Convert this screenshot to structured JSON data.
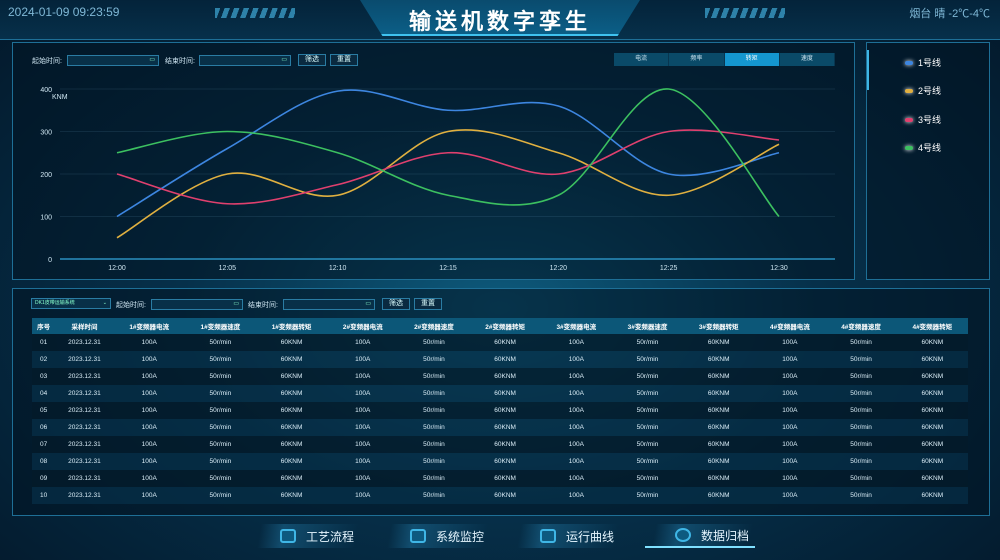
{
  "header": {
    "datetime": "2024-01-09 09:23:59",
    "title": "输送机数字孪生",
    "weather": "烟台 晴 -2℃-4℃"
  },
  "chart_filter": {
    "start_label": "起始时间:",
    "end_label": "结束时间:",
    "filter_button": "筛选",
    "reset_button": "重置"
  },
  "chart_tabs": [
    {
      "label": "电流",
      "active": false
    },
    {
      "label": "频率",
      "active": false
    },
    {
      "label": "转矩",
      "active": true
    },
    {
      "label": "速度",
      "active": false
    }
  ],
  "chart_data": {
    "type": "line",
    "xlabel": "",
    "ylabel": "KNM",
    "ylim": [
      0,
      400
    ],
    "yticks": [
      0,
      100,
      200,
      300,
      400
    ],
    "categories": [
      "12:00",
      "12:05",
      "12:10",
      "12:15",
      "12:20",
      "12:25",
      "12:30"
    ],
    "grid": true,
    "legend": "right-panel",
    "series": [
      {
        "name": "1号线",
        "color": "#3d86e0",
        "values": [
          100,
          260,
          395,
          350,
          360,
          200,
          250
        ]
      },
      {
        "name": "2号线",
        "color": "#e0b040",
        "values": [
          50,
          200,
          150,
          300,
          250,
          150,
          270
        ]
      },
      {
        "name": "3号线",
        "color": "#e0406e",
        "values": [
          200,
          130,
          175,
          250,
          200,
          300,
          280
        ]
      },
      {
        "name": "4号线",
        "color": "#3cc060",
        "values": [
          250,
          300,
          250,
          150,
          150,
          400,
          100
        ]
      }
    ]
  },
  "table_filter": {
    "system_select": "DK1皮带运输系统",
    "start_label": "起始时间:",
    "end_label": "结束时间:",
    "filter_button": "筛选",
    "reset_button": "重置"
  },
  "table": {
    "headers": [
      "序号",
      "采样时间",
      "1#变频器电流",
      "1#变频器速度",
      "1#变频器转矩",
      "2#变频器电流",
      "2#变频器速度",
      "2#变频器转矩",
      "3#变频器电流",
      "3#变频器速度",
      "3#变频器转矩",
      "4#变频器电流",
      "4#变频器速度",
      "4#变频器转矩"
    ],
    "rows": [
      [
        "01",
        "2023.12.31",
        "100A",
        "50r/min",
        "60KNM",
        "100A",
        "50r/min",
        "60KNM",
        "100A",
        "50r/min",
        "60KNM",
        "100A",
        "50r/min",
        "60KNM"
      ],
      [
        "02",
        "2023.12.31",
        "100A",
        "50r/min",
        "60KNM",
        "100A",
        "50r/min",
        "60KNM",
        "100A",
        "50r/min",
        "60KNM",
        "100A",
        "50r/min",
        "60KNM"
      ],
      [
        "03",
        "2023.12.31",
        "100A",
        "50r/min",
        "60KNM",
        "100A",
        "50r/min",
        "60KNM",
        "100A",
        "50r/min",
        "60KNM",
        "100A",
        "50r/min",
        "60KNM"
      ],
      [
        "04",
        "2023.12.31",
        "100A",
        "50r/min",
        "60KNM",
        "100A",
        "50r/min",
        "60KNM",
        "100A",
        "50r/min",
        "60KNM",
        "100A",
        "50r/min",
        "60KNM"
      ],
      [
        "05",
        "2023.12.31",
        "100A",
        "50r/min",
        "60KNM",
        "100A",
        "50r/min",
        "60KNM",
        "100A",
        "50r/min",
        "60KNM",
        "100A",
        "50r/min",
        "60KNM"
      ],
      [
        "06",
        "2023.12.31",
        "100A",
        "50r/min",
        "60KNM",
        "100A",
        "50r/min",
        "60KNM",
        "100A",
        "50r/min",
        "60KNM",
        "100A",
        "50r/min",
        "60KNM"
      ],
      [
        "07",
        "2023.12.31",
        "100A",
        "50r/min",
        "60KNM",
        "100A",
        "50r/min",
        "60KNM",
        "100A",
        "50r/min",
        "60KNM",
        "100A",
        "50r/min",
        "60KNM"
      ],
      [
        "08",
        "2023.12.31",
        "100A",
        "50r/min",
        "60KNM",
        "100A",
        "50r/min",
        "60KNM",
        "100A",
        "50r/min",
        "60KNM",
        "100A",
        "50r/min",
        "60KNM"
      ],
      [
        "09",
        "2023.12.31",
        "100A",
        "50r/min",
        "60KNM",
        "100A",
        "50r/min",
        "60KNM",
        "100A",
        "50r/min",
        "60KNM",
        "100A",
        "50r/min",
        "60KNM"
      ],
      [
        "10",
        "2023.12.31",
        "100A",
        "50r/min",
        "60KNM",
        "100A",
        "50r/min",
        "60KNM",
        "100A",
        "50r/min",
        "60KNM",
        "100A",
        "50r/min",
        "60KNM"
      ]
    ]
  },
  "bottom_nav": [
    {
      "label": "工艺流程",
      "icon": "cube-icon"
    },
    {
      "label": "系统监控",
      "icon": "monitor-icon"
    },
    {
      "label": "运行曲线",
      "icon": "curve-icon"
    },
    {
      "label": "数据归档",
      "icon": "database-icon",
      "active": true
    }
  ]
}
